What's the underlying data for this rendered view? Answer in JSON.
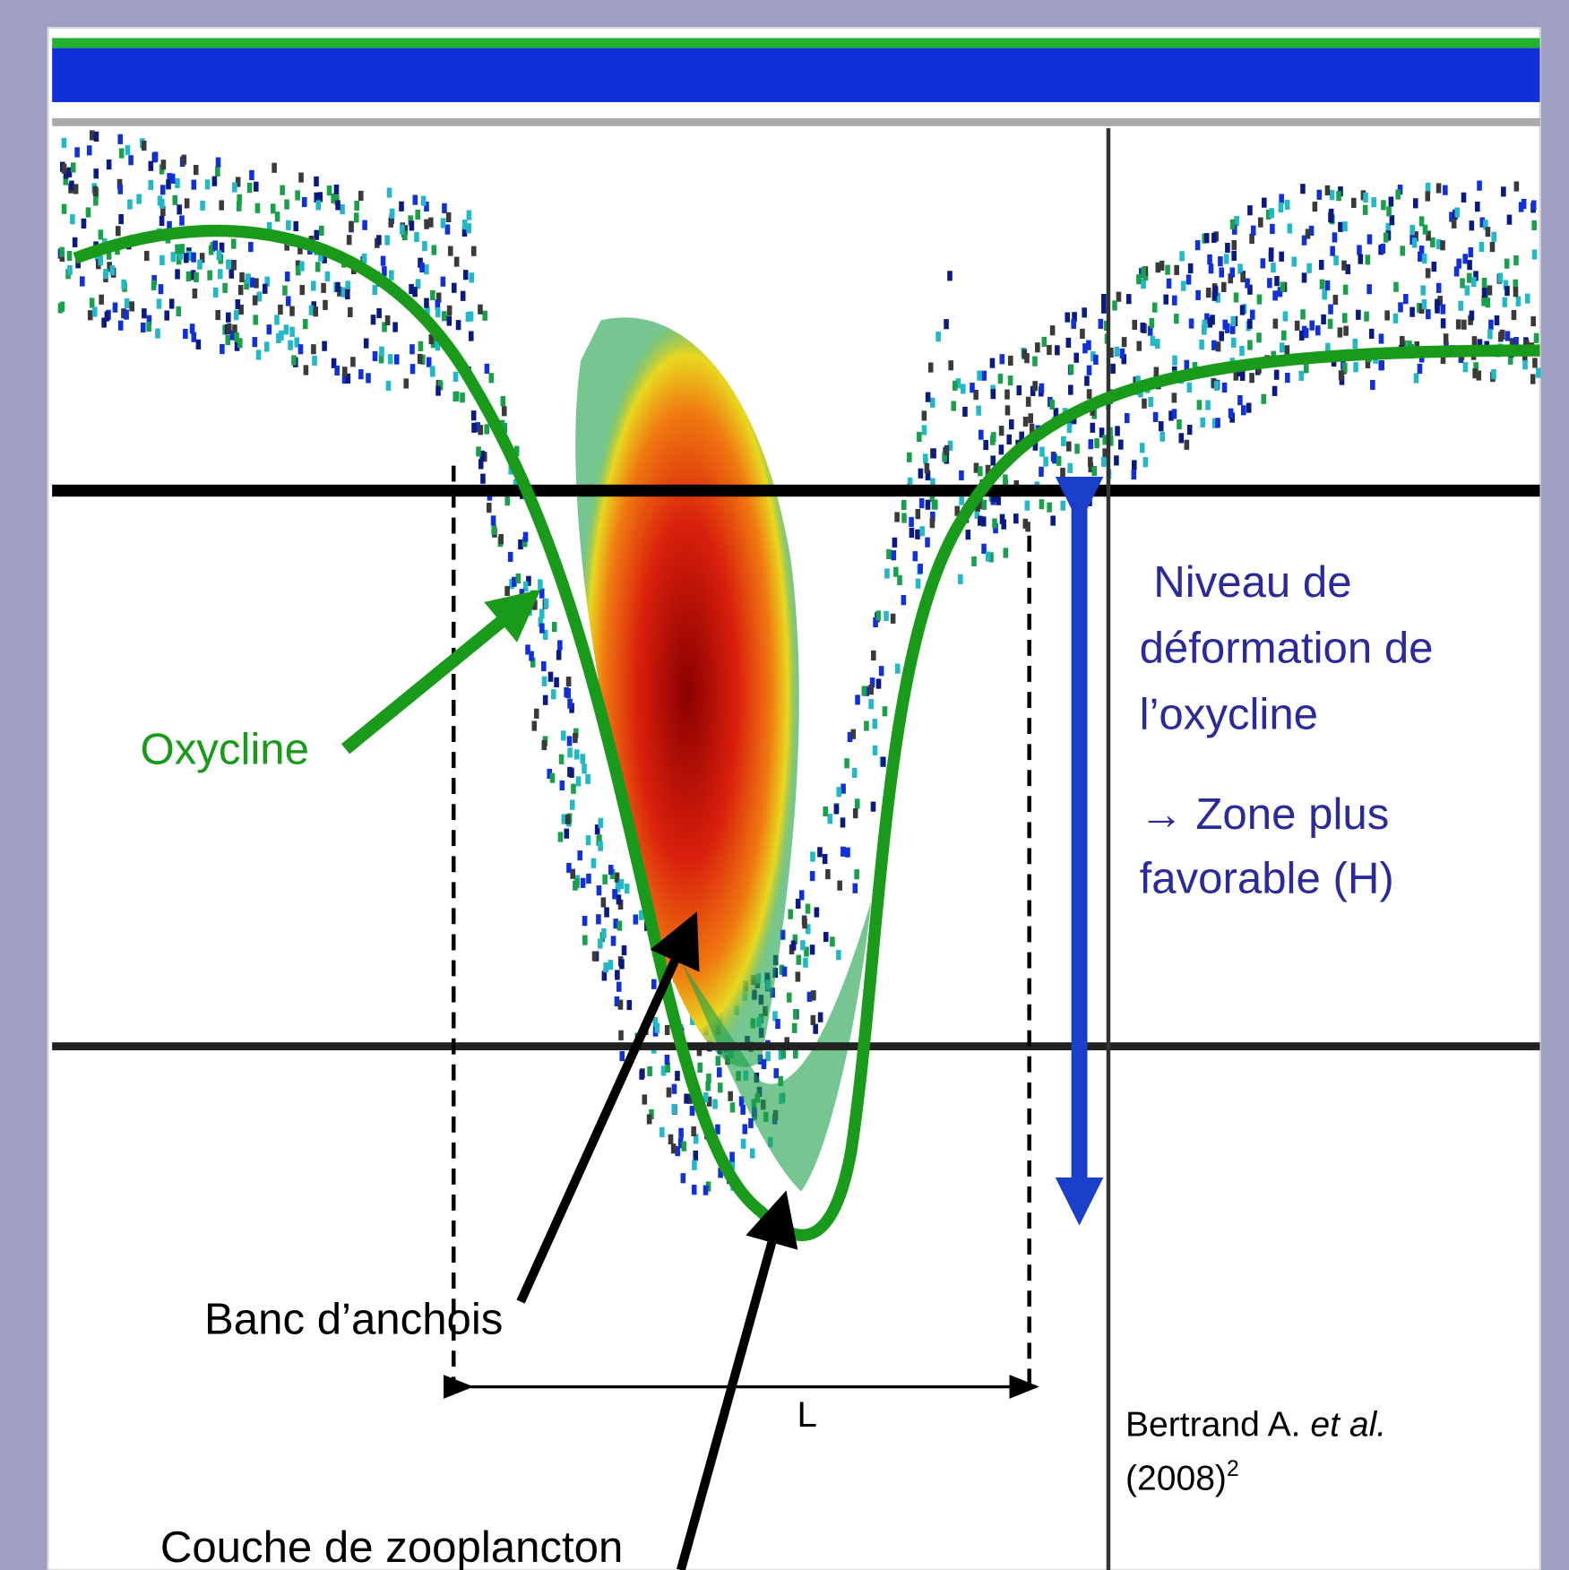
{
  "labels": {
    "oxycline": "Oxycline",
    "deformation": [
      "Niveau de",
      "déformation de",
      "l’oxycline"
    ],
    "zone": [
      "→ Zone plus",
      "favorable (H)"
    ],
    "school": "Banc d’anchois",
    "zooplankton": "Couche de zooplancton",
    "width": "L"
  },
  "citation": {
    "author": "Bertrand A. ",
    "etal": "et al.",
    "year": "(2008)",
    "note": "2"
  }
}
